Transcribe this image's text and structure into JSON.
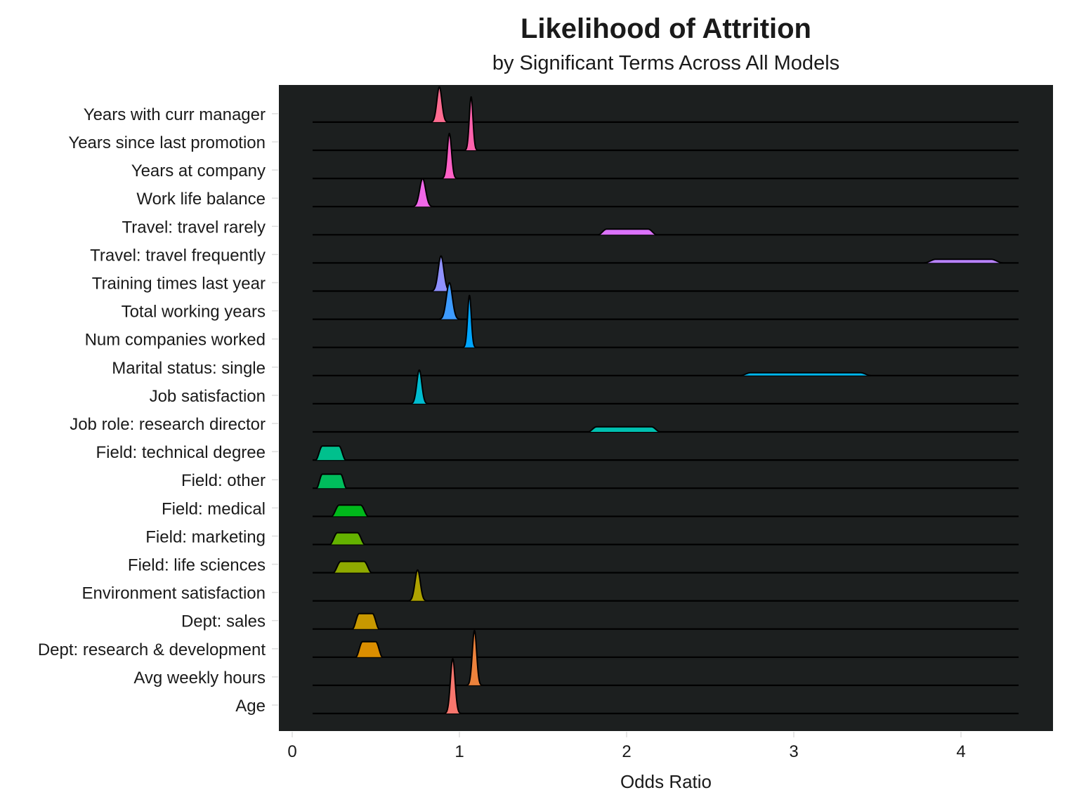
{
  "chart_data": {
    "type": "ridgeline",
    "title": "Likelihood of Attrition",
    "subtitle": "by Significant Terms Across All Models",
    "xlabel": "Odds Ratio",
    "ylabel": "",
    "xlim": [
      -0.08,
      4.55
    ],
    "xticks": [
      0,
      1,
      2,
      3,
      4
    ],
    "panel_background": "#1c1f1f",
    "baseline_color": "#000000",
    "categories": [
      "Age",
      "Avg weekly hours",
      "Dept: research & development",
      "Dept: sales",
      "Environment satisfaction",
      "Field: life sciences",
      "Field: marketing",
      "Field: medical",
      "Field: other",
      "Field: technical degree",
      "Job role: research director",
      "Job satisfaction",
      "Marital status: single",
      "Num companies worked",
      "Total working years",
      "Training times last year",
      "Travel: travel frequently",
      "Travel: travel rarely",
      "Work life balance",
      "Years at company",
      "Years since last promotion",
      "Years with curr manager"
    ],
    "series": [
      {
        "category": "Age",
        "color": "#F8766D",
        "peaks": [
          {
            "center": 0.96,
            "sd": 0.014,
            "height": 1.95
          }
        ]
      },
      {
        "category": "Avg weekly hours",
        "color": "#EC823C",
        "peaks": [
          {
            "center": 1.09,
            "sd": 0.013,
            "height": 1.95
          }
        ]
      },
      {
        "category": "Dept: research & development",
        "color": "#DB8E00",
        "flats": [
          {
            "lo": 0.42,
            "hi": 0.5,
            "ramp": 0.04,
            "height": 0.55
          }
        ]
      },
      {
        "category": "Dept: sales",
        "color": "#C79800",
        "flats": [
          {
            "lo": 0.4,
            "hi": 0.48,
            "ramp": 0.04,
            "height": 0.55
          }
        ]
      },
      {
        "category": "Environment satisfaction",
        "color": "#AEA200",
        "peaks": [
          {
            "center": 0.75,
            "sd": 0.016,
            "height": 1.1
          }
        ]
      },
      {
        "category": "Field: life sciences",
        "color": "#8FAA00",
        "flats": [
          {
            "lo": 0.29,
            "hi": 0.43,
            "ramp": 0.045,
            "height": 0.4
          }
        ]
      },
      {
        "category": "Field: marketing",
        "color": "#64B200",
        "flats": [
          {
            "lo": 0.27,
            "hi": 0.39,
            "ramp": 0.045,
            "height": 0.42
          }
        ]
      },
      {
        "category": "Field: medical",
        "color": "#00B81B",
        "flats": [
          {
            "lo": 0.28,
            "hi": 0.41,
            "ramp": 0.045,
            "height": 0.4
          }
        ]
      },
      {
        "category": "Field: other",
        "color": "#00BD5C",
        "flats": [
          {
            "lo": 0.18,
            "hi": 0.29,
            "ramp": 0.035,
            "height": 0.5
          }
        ]
      },
      {
        "category": "Field: technical degree",
        "color": "#00C08D",
        "flats": [
          {
            "lo": 0.18,
            "hi": 0.28,
            "ramp": 0.04,
            "height": 0.5
          }
        ]
      },
      {
        "category": "Job role: research director",
        "color": "#00C0B0",
        "flats": [
          {
            "lo": 1.82,
            "hi": 2.15,
            "ramp": 0.05,
            "height": 0.18
          }
        ]
      },
      {
        "category": "Job satisfaction",
        "color": "#00BCD0",
        "peaks": [
          {
            "center": 0.76,
            "sd": 0.015,
            "height": 1.2
          }
        ]
      },
      {
        "category": "Marital status: single",
        "color": "#00B5EB",
        "flats": [
          {
            "lo": 2.74,
            "hi": 3.4,
            "ramp": 0.06,
            "height": 0.1
          }
        ]
      },
      {
        "category": "Num companies worked",
        "color": "#00A5FF",
        "peaks": [
          {
            "center": 1.06,
            "sd": 0.011,
            "height": 1.85
          }
        ]
      },
      {
        "category": "Total working years",
        "color": "#3D9BFF",
        "peaks": [
          {
            "center": 0.94,
            "sd": 0.018,
            "height": 1.3
          }
        ]
      },
      {
        "category": "Training times last year",
        "color": "#8F91FF",
        "peaks": [
          {
            "center": 0.89,
            "sd": 0.017,
            "height": 1.25
          }
        ]
      },
      {
        "category": "Travel: travel frequently",
        "color": "#B983FF",
        "flats": [
          {
            "lo": 3.85,
            "hi": 4.18,
            "ramp": 0.07,
            "height": 0.13
          }
        ]
      },
      {
        "category": "Travel: travel rarely",
        "color": "#DB72FB",
        "flats": [
          {
            "lo": 1.88,
            "hi": 2.13,
            "ramp": 0.05,
            "height": 0.2
          }
        ]
      },
      {
        "category": "Work life balance",
        "color": "#F067E8",
        "peaks": [
          {
            "center": 0.78,
            "sd": 0.018,
            "height": 1.0
          }
        ]
      },
      {
        "category": "Years at company",
        "color": "#FF61C7",
        "peaks": [
          {
            "center": 0.94,
            "sd": 0.013,
            "height": 1.6
          }
        ]
      },
      {
        "category": "Years since last promotion",
        "color": "#FF62AD",
        "peaks": [
          {
            "center": 1.07,
            "sd": 0.011,
            "height": 1.9
          }
        ]
      },
      {
        "category": "Years with curr manager",
        "color": "#FF6C91",
        "peaks": [
          {
            "center": 0.88,
            "sd": 0.015,
            "height": 1.25
          }
        ]
      }
    ]
  }
}
